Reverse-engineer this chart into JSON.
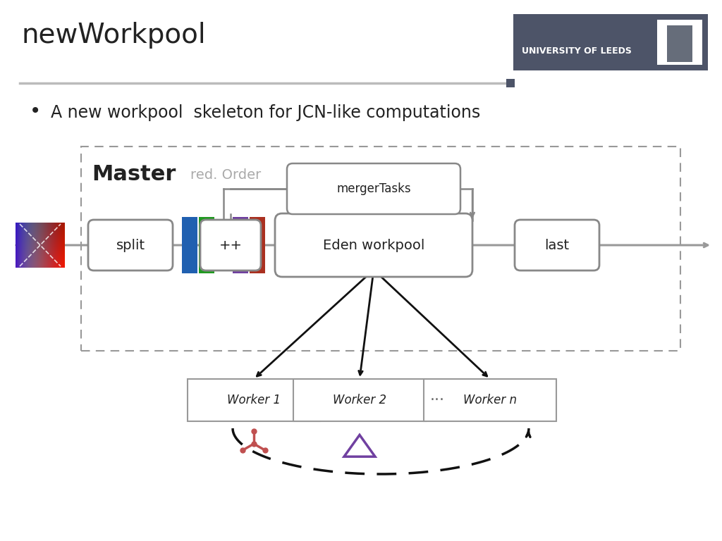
{
  "title": "newWorkpool",
  "bullet_text": "A new workpool  skeleton for JCN-like computations",
  "master_label": "Master",
  "red_order_label": "red. Order",
  "merger_tasks_label": "mergerTasks",
  "split_label": "split",
  "plus_plus_label": "++",
  "eden_wp_label": "Eden workpool",
  "last_label": "last",
  "worker_labels": [
    "Worker 1",
    "Worker 2",
    "Worker n"
  ],
  "dots_label": "...",
  "background": "#ffffff",
  "header_bg": "#4d5468",
  "dashed_box_color": "#999999",
  "box_edge_color": "#888888",
  "bar_colors": [
    "#2060b0",
    "#229922",
    "#7040a0",
    "#aa3020"
  ],
  "arrow_color_black": "#111111",
  "gray_line_color": "#999999",
  "worker_icon1_color": "#c05050",
  "worker_icon2_color": "#7040a0"
}
